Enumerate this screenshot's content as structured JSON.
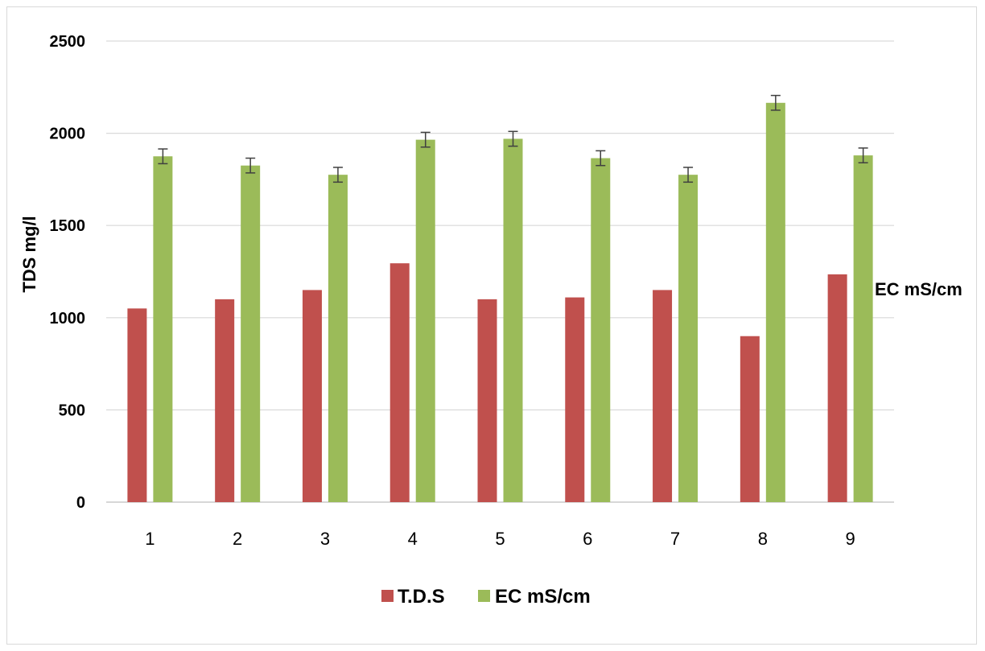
{
  "chart_data": {
    "type": "bar",
    "title": "",
    "xlabel": "",
    "ylabel": "TDS mg/l",
    "secondary_label": "EC mS/cm",
    "categories": [
      "1",
      "2",
      "3",
      "4",
      "5",
      "6",
      "7",
      "8",
      "9"
    ],
    "ylim": [
      0,
      2500
    ],
    "yticks": [
      "0",
      "500",
      "1000",
      "1500",
      "2000",
      "2500"
    ],
    "grid": true,
    "legend_position": "bottom",
    "series": [
      {
        "name": "T.D.S",
        "color": "#c0504d",
        "values": [
          1050,
          1100,
          1150,
          1295,
          1100,
          1110,
          1150,
          900,
          1235
        ]
      },
      {
        "name": "EC mS/cm",
        "color": "#9bbb59",
        "values": [
          1875,
          1825,
          1775,
          1965,
          1970,
          1865,
          1775,
          2165,
          1880
        ],
        "error": [
          40,
          40,
          40,
          40,
          40,
          40,
          40,
          40,
          40
        ]
      }
    ]
  }
}
